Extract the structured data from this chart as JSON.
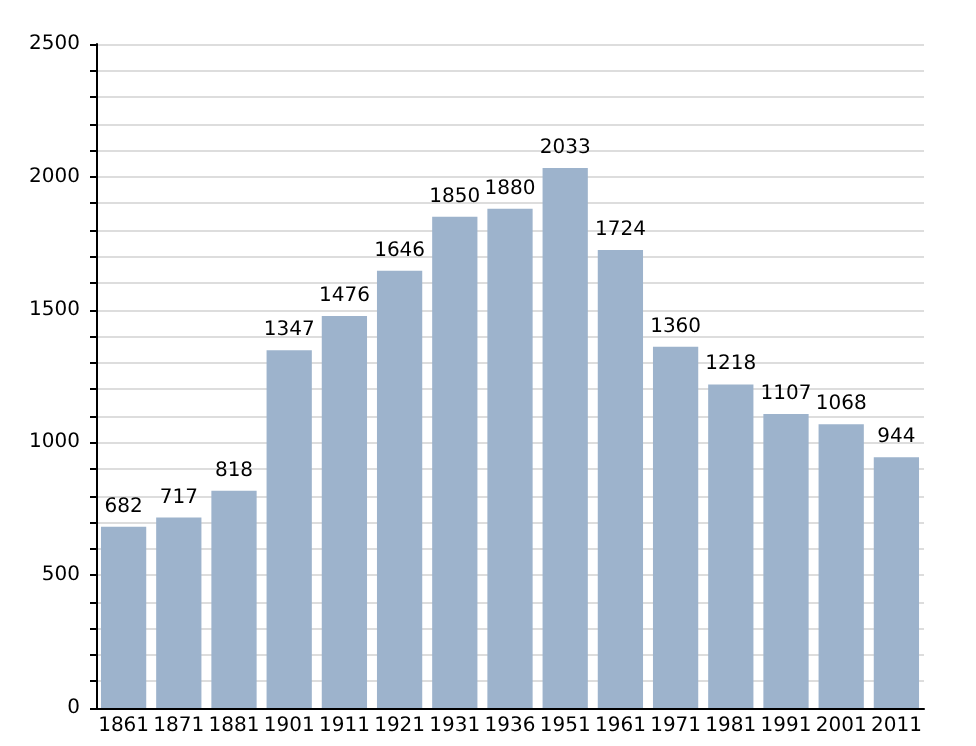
{
  "chart_data": {
    "type": "bar",
    "categories": [
      "1861",
      "1871",
      "1881",
      "1901",
      "1911",
      "1921",
      "1931",
      "1936",
      "1951",
      "1961",
      "1971",
      "1981",
      "1991",
      "2001",
      "2011"
    ],
    "values": [
      682,
      717,
      818,
      1347,
      1476,
      1646,
      1850,
      1880,
      2033,
      1724,
      1360,
      1218,
      1107,
      1068,
      944
    ],
    "color": "#9db3cc",
    "data_labels": true,
    "ylim": [
      0,
      2500
    ],
    "yticks": [
      0,
      {
        "value": 100,
        "label": null
      },
      {
        "value": 200,
        "label": null
      },
      {
        "value": 300,
        "label": null
      },
      {
        "value": 400,
        "label": null
      },
      500,
      {
        "value": 600,
        "label": null
      },
      {
        "value": 700,
        "label": null
      },
      {
        "value": 800,
        "label": null
      },
      {
        "value": 900,
        "label": null
      },
      1000,
      {
        "value": 1100,
        "label": null
      },
      {
        "value": 1200,
        "label": null
      },
      {
        "value": 1300,
        "label": null
      },
      {
        "value": 1400,
        "label": null
      },
      1500,
      {
        "value": 1600,
        "label": null
      },
      {
        "value": 1700,
        "label": null
      },
      {
        "value": 1800,
        "label": null
      },
      {
        "value": 1900,
        "label": null
      },
      2000,
      {
        "value": 2100,
        "label": null
      },
      {
        "value": 2200,
        "label": null
      },
      {
        "value": 2300,
        "label": null
      },
      {
        "value": 2400,
        "label": null
      },
      2500
    ],
    "grid": "y"
  }
}
